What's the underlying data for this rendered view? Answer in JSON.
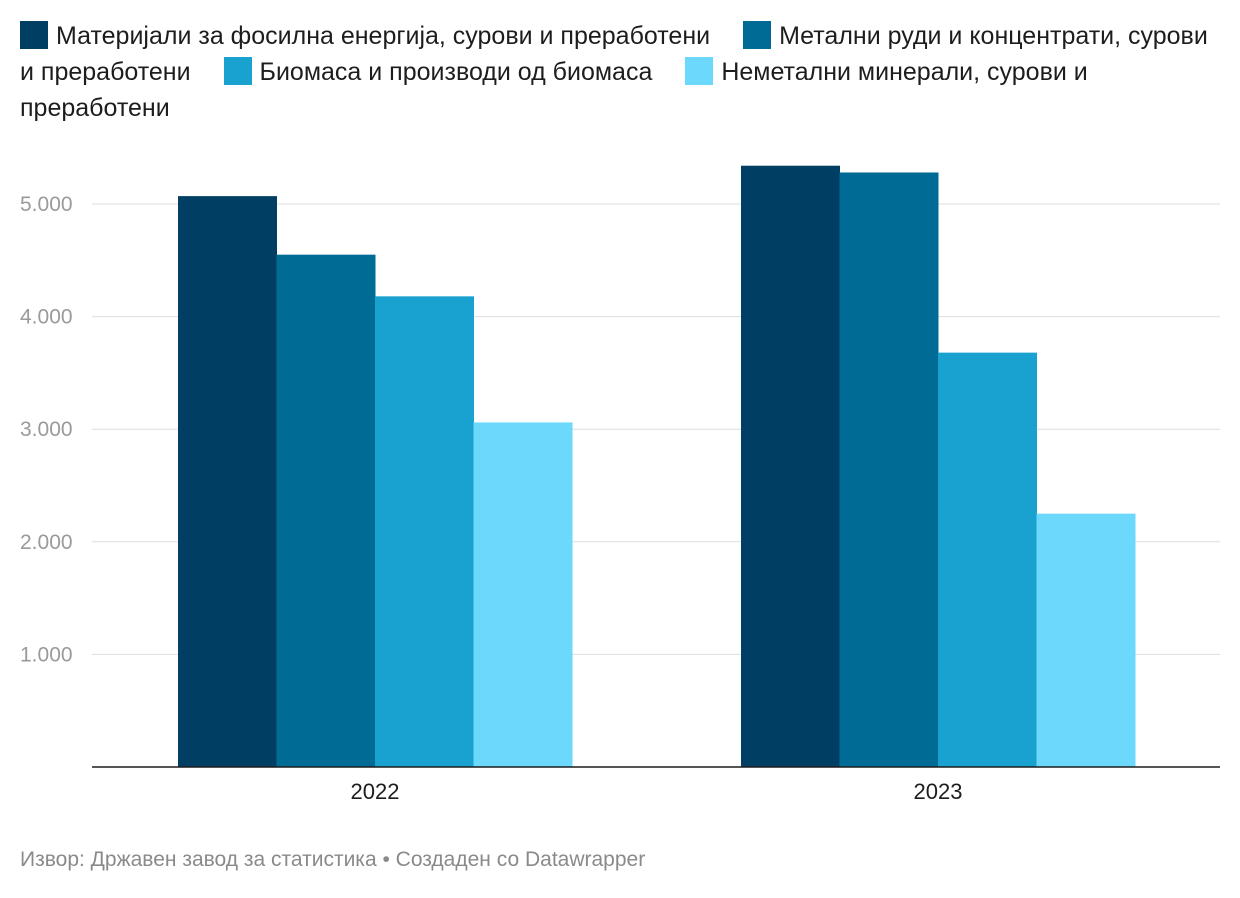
{
  "chart_data": {
    "type": "bar",
    "categories": [
      "2022",
      "2023"
    ],
    "series": [
      {
        "name": "Материјали за фосилна енергија, сурови и преработени",
        "color": "#003f63",
        "values": [
          5070,
          5340
        ]
      },
      {
        "name": "Метални руди и концентрати, сурови и преработени",
        "color": "#006c96",
        "values": [
          4550,
          5280
        ]
      },
      {
        "name": "Биомаса и производи од биомаса",
        "color": "#19a2cf",
        "values": [
          4180,
          3680
        ]
      },
      {
        "name": "Неметални минерали, сурови и преработени",
        "color": "#6bd8fc",
        "values": [
          3060,
          2250
        ]
      }
    ],
    "yticks": [
      "1.000",
      "2.000",
      "3.000",
      "4.000",
      "5.000"
    ],
    "ytick_values": [
      1000,
      2000,
      3000,
      4000,
      5000
    ],
    "ylim": [
      0,
      5500
    ],
    "grid": true,
    "legend": "top"
  },
  "footer": {
    "text": "Извор: Државен завод за статистика • Создаден со Datawrapper"
  }
}
